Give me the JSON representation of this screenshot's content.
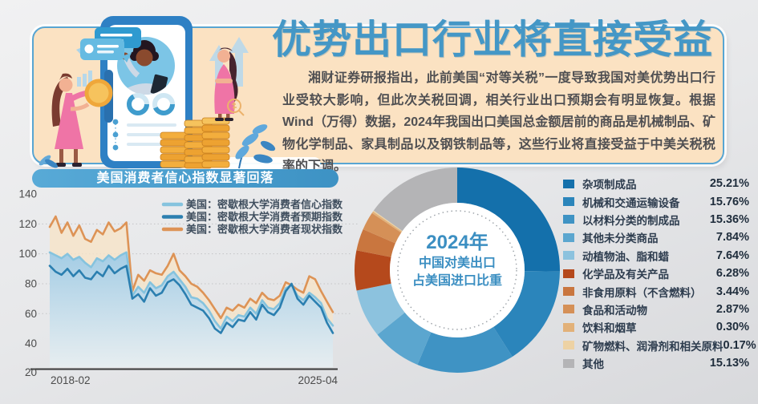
{
  "header": {
    "title": "优势出口行业将直接受益",
    "title_color": "#4497c6",
    "paragraph": "湘财证券研报指出，此前美国“对等关税”一度导致我国对美优势出口行业受较大影响，但此次关税回调，相关行业出口预期会有明显恢复。根据Wind（万得）数据，2024年我国出口美国总金额居前的商品是机械制品、矿物化学制品、家具制品以及钢铁制品等，这些行业将直接受益于中美关税税率的下调。"
  },
  "chart_data": [
    {
      "type": "line",
      "title": "美国消费者信心指数显著回落",
      "x_labels": [
        "2018-02",
        "2025-04"
      ],
      "yticks": [
        140,
        120,
        100,
        80,
        60,
        40,
        20
      ],
      "ylim": [
        20,
        140
      ],
      "grid": "dotted horizontal at 120/100/80/60",
      "legend_position": "top-right",
      "series": [
        {
          "name": "美国：密歇根大学消费者信心指数",
          "color": "#85c3de",
          "values": [
            101,
            99,
            97,
            100,
            96,
            98,
            94,
            91,
            97,
            95,
            99,
            96,
            99,
            101,
            72,
            78,
            74,
            81,
            77,
            79,
            85,
            88,
            83,
            78,
            71,
            70,
            67,
            62,
            55,
            50,
            58,
            55,
            59,
            58,
            64,
            60,
            69,
            64,
            63,
            67,
            77,
            79,
            72,
            69,
            74,
            71,
            67,
            57,
            52
          ]
        },
        {
          "name": "美国：密歇根大学消费者预期指数",
          "color": "#2b7fb0",
          "values": [
            92,
            88,
            86,
            90,
            85,
            89,
            84,
            83,
            88,
            85,
            92,
            87,
            90,
            92,
            70,
            73,
            68,
            77,
            72,
            74,
            81,
            83,
            79,
            73,
            66,
            64,
            62,
            57,
            50,
            47,
            54,
            51,
            56,
            55,
            61,
            56,
            66,
            61,
            59,
            64,
            75,
            80,
            70,
            66,
            72,
            68,
            64,
            54,
            47
          ]
        },
        {
          "name": "美国：密歇根大学消费者现状指数",
          "color": "#dd9356",
          "values": [
            118,
            125,
            114,
            121,
            112,
            119,
            110,
            108,
            116,
            113,
            121,
            115,
            117,
            121,
            75,
            86,
            82,
            89,
            87,
            86,
            92,
            100,
            89,
            85,
            80,
            78,
            74,
            69,
            63,
            57,
            64,
            62,
            66,
            64,
            70,
            67,
            74,
            70,
            69,
            72,
            81,
            79,
            76,
            74,
            85,
            83,
            75,
            68,
            61
          ]
        }
      ]
    },
    {
      "type": "donut",
      "center_title": "2024年",
      "center_line2": "中国对美出口",
      "center_line3": "占美国进口比重",
      "segments": [
        {
          "label": "杂项制成品",
          "value": 25.21,
          "color": "#1470ab"
        },
        {
          "label": "机械和交通运输设备",
          "value": 15.76,
          "color": "#2b85bb"
        },
        {
          "label": "以材料分类的制成品",
          "value": 15.36,
          "color": "#3f93c4"
        },
        {
          "label": "其他未分类商品",
          "value": 7.84,
          "color": "#5ba6cf"
        },
        {
          "label": "动植物油、脂和蜡",
          "value": 7.64,
          "color": "#8cc2de"
        },
        {
          "label": "化学品及有关产品",
          "value": 6.28,
          "color": "#b5491c"
        },
        {
          "label": "非食用原料（不含燃料）",
          "value": 3.44,
          "color": "#c9763f"
        },
        {
          "label": "食品和活动物",
          "value": 2.87,
          "color": "#d59057"
        },
        {
          "label": "饮料和烟草",
          "value": 0.3,
          "color": "#e2b179"
        },
        {
          "label": "矿物燃料、润滑剂和相关原料",
          "value": 0.17,
          "color": "#edd2a4"
        },
        {
          "label": "其他",
          "value": 15.13,
          "color": "#b4b4b6"
        }
      ]
    }
  ]
}
